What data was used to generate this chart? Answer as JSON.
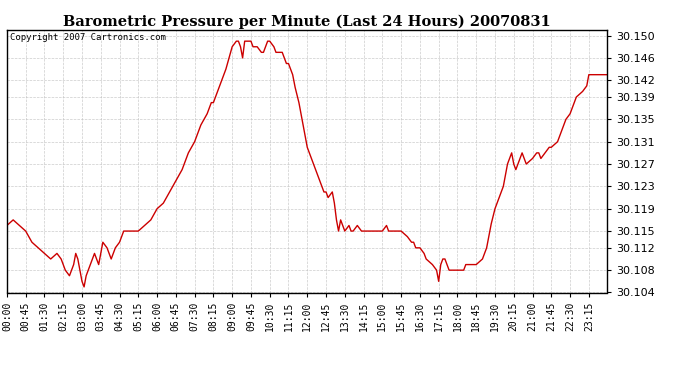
{
  "title": "Barometric Pressure per Minute (Last 24 Hours) 20070831",
  "copyright_text": "Copyright 2007 Cartronics.com",
  "line_color": "#cc0000",
  "background_color": "#ffffff",
  "plot_bg_color": "#ffffff",
  "grid_color": "#c0c0c0",
  "ylim": [
    30.104,
    30.151
  ],
  "yticks": [
    30.104,
    30.108,
    30.112,
    30.115,
    30.119,
    30.123,
    30.127,
    30.131,
    30.135,
    30.139,
    30.142,
    30.146,
    30.15
  ],
  "xtick_labels": [
    "00:00",
    "00:45",
    "01:30",
    "02:15",
    "03:00",
    "03:45",
    "04:30",
    "05:15",
    "06:00",
    "06:45",
    "07:30",
    "08:15",
    "09:00",
    "09:45",
    "10:30",
    "11:15",
    "12:00",
    "12:45",
    "13:30",
    "14:15",
    "15:00",
    "15:45",
    "16:30",
    "17:15",
    "18:00",
    "18:45",
    "19:30",
    "20:15",
    "21:00",
    "21:45",
    "22:30",
    "23:15"
  ],
  "key_points": {
    "00:00": 30.116,
    "00:15": 30.117,
    "00:30": 30.116,
    "00:45": 30.115,
    "01:00": 30.113,
    "01:15": 30.112,
    "01:30": 30.111,
    "01:45": 30.11,
    "02:00": 30.111,
    "02:10": 30.11,
    "02:15": 30.109,
    "02:20": 30.108,
    "02:30": 30.107,
    "02:40": 30.109,
    "02:45": 30.111,
    "02:50": 30.11,
    "03:00": 30.106,
    "03:05": 30.105,
    "03:10": 30.107,
    "03:20": 30.109,
    "03:30": 30.111,
    "03:35": 30.11,
    "03:40": 30.109,
    "03:45": 30.111,
    "03:50": 30.113,
    "04:00": 30.112,
    "04:10": 30.11,
    "04:20": 30.112,
    "04:30": 30.113,
    "04:40": 30.115,
    "04:45": 30.115,
    "05:00": 30.115,
    "05:15": 30.115,
    "05:30": 30.116,
    "05:45": 30.117,
    "06:00": 30.119,
    "06:15": 30.12,
    "06:30": 30.122,
    "06:45": 30.124,
    "07:00": 30.126,
    "07:15": 30.129,
    "07:30": 30.131,
    "07:45": 30.134,
    "08:00": 30.136,
    "08:10": 30.138,
    "08:15": 30.138,
    "08:20": 30.139,
    "08:30": 30.141,
    "08:40": 30.143,
    "08:45": 30.144,
    "09:00": 30.148,
    "09:10": 30.149,
    "09:15": 30.149,
    "09:20": 30.148,
    "09:25": 30.146,
    "09:30": 30.149,
    "09:40": 30.149,
    "09:45": 30.149,
    "09:50": 30.148,
    "10:00": 30.148,
    "10:10": 30.147,
    "10:15": 30.147,
    "10:20": 30.148,
    "10:25": 30.149,
    "10:30": 30.149,
    "10:40": 30.148,
    "10:45": 30.147,
    "11:00": 30.147,
    "11:10": 30.145,
    "11:15": 30.145,
    "11:20": 30.144,
    "11:25": 30.143,
    "11:30": 30.141,
    "11:40": 30.138,
    "11:45": 30.136,
    "12:00": 30.13,
    "12:10": 30.128,
    "12:15": 30.127,
    "12:20": 30.126,
    "12:30": 30.124,
    "12:40": 30.122,
    "12:45": 30.122,
    "12:50": 30.121,
    "13:00": 30.122,
    "13:05": 30.12,
    "13:10": 30.117,
    "13:15": 30.115,
    "13:20": 30.117,
    "13:25": 30.116,
    "13:30": 30.115,
    "13:40": 30.116,
    "13:45": 30.115,
    "13:50": 30.115,
    "14:00": 30.116,
    "14:10": 30.115,
    "14:15": 30.115,
    "14:20": 30.115,
    "14:30": 30.115,
    "14:40": 30.115,
    "14:45": 30.115,
    "15:00": 30.115,
    "15:10": 30.116,
    "15:15": 30.115,
    "15:20": 30.115,
    "15:30": 30.115,
    "15:40": 30.115,
    "15:45": 30.115,
    "16:00": 30.114,
    "16:10": 30.113,
    "16:15": 30.113,
    "16:20": 30.112,
    "16:30": 30.112,
    "16:40": 30.111,
    "16:45": 30.11,
    "17:00": 30.109,
    "17:10": 30.108,
    "17:15": 30.106,
    "17:20": 30.109,
    "17:25": 30.11,
    "17:30": 30.11,
    "17:35": 30.109,
    "17:40": 30.108,
    "17:45": 30.108,
    "18:00": 30.108,
    "18:10": 30.108,
    "18:15": 30.108,
    "18:20": 30.109,
    "18:30": 30.109,
    "18:40": 30.109,
    "18:45": 30.109,
    "19:00": 30.11,
    "19:10": 30.112,
    "19:15": 30.114,
    "19:20": 30.116,
    "19:30": 30.119,
    "19:40": 30.121,
    "19:45": 30.122,
    "19:50": 30.123,
    "20:00": 30.127,
    "20:05": 30.128,
    "20:10": 30.129,
    "20:15": 30.127,
    "20:20": 30.126,
    "20:25": 30.127,
    "20:30": 30.128,
    "20:35": 30.129,
    "20:40": 30.128,
    "20:45": 30.127,
    "21:00": 30.128,
    "21:10": 30.129,
    "21:15": 30.129,
    "21:20": 30.128,
    "21:30": 30.129,
    "21:40": 30.13,
    "21:45": 30.13,
    "22:00": 30.131,
    "22:10": 30.133,
    "22:15": 30.134,
    "22:20": 30.135,
    "22:30": 30.136,
    "22:40": 30.138,
    "22:45": 30.139,
    "23:00": 30.14,
    "23:10": 30.141,
    "23:15": 30.143
  }
}
